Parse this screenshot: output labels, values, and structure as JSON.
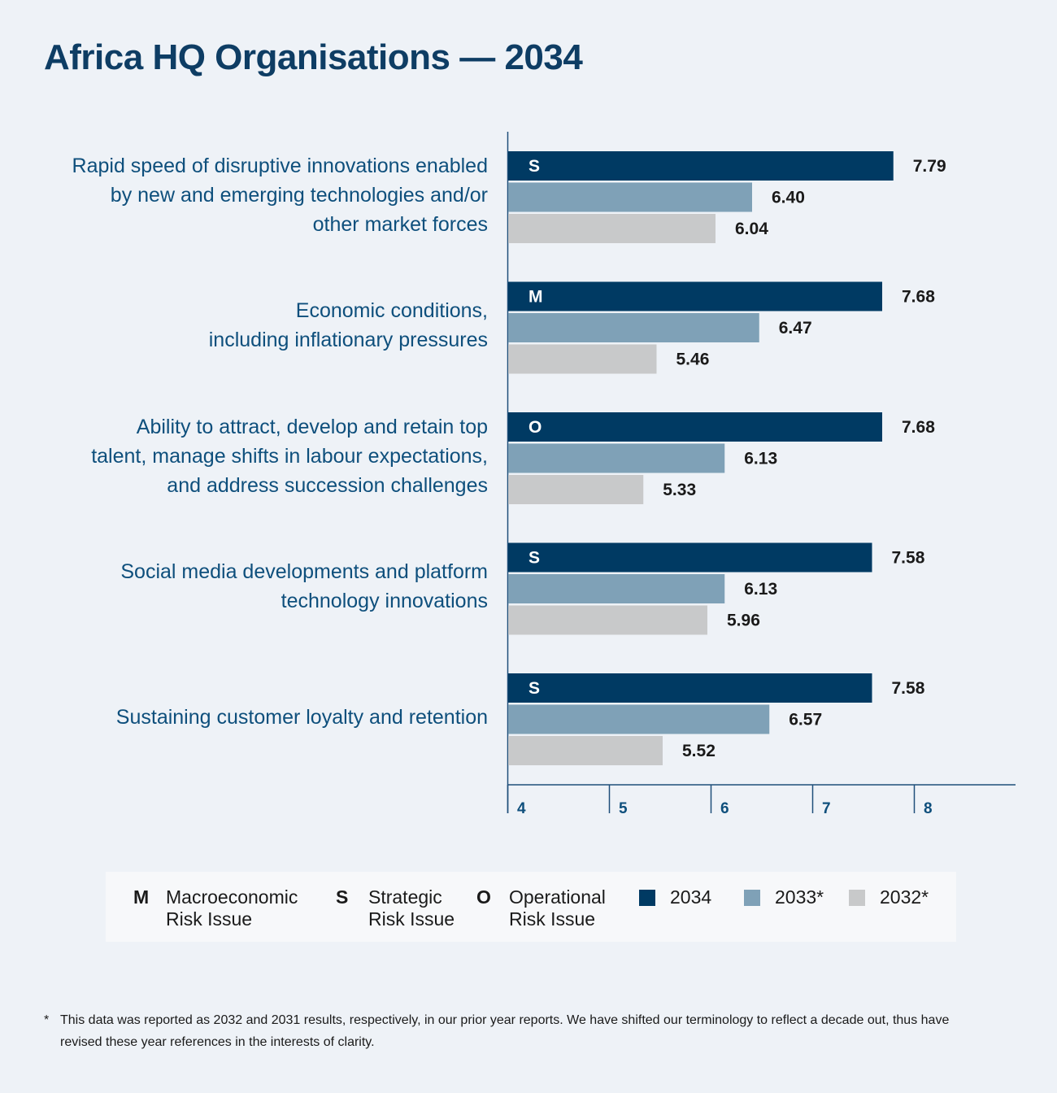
{
  "title": "Africa HQ Organisations — 2034",
  "chart_data": {
    "type": "bar",
    "orientation": "horizontal",
    "categories": [
      [
        "Rapid speed of disruptive innovations enabled",
        "by new and emerging technologies and/or",
        "other market forces"
      ],
      [
        "Economic conditions,",
        "including inflationary pressures"
      ],
      [
        "Ability to attract, develop and retain top",
        "talent, manage shifts in labour expectations,",
        "and address succession challenges"
      ],
      [
        "Social media developments and platform",
        "technology innovations"
      ],
      [
        "Sustaining customer loyalty and retention"
      ]
    ],
    "risk_codes": [
      "S",
      "M",
      "O",
      "S",
      "S"
    ],
    "series": [
      {
        "name": "2034",
        "color": "#003a63",
        "values": [
          7.79,
          7.68,
          7.68,
          7.58,
          7.58
        ]
      },
      {
        "name": "2033*",
        "color": "#7fa1b7",
        "values": [
          6.4,
          6.47,
          6.13,
          6.13,
          6.57
        ]
      },
      {
        "name": "2032*",
        "color": "#c8c9ca",
        "values": [
          6.04,
          5.46,
          5.33,
          5.96,
          5.52
        ]
      }
    ],
    "xlim": [
      4,
      9
    ],
    "xticks": [
      "4",
      "5",
      "6",
      "7",
      "8"
    ],
    "value_labels": [
      [
        "7.79",
        "6.40",
        "6.04"
      ],
      [
        "7.68",
        "6.47",
        "5.46"
      ],
      [
        "7.68",
        "6.13",
        "5.33"
      ],
      [
        "7.58",
        "6.13",
        "5.96"
      ],
      [
        "7.58",
        "6.57",
        "5.52"
      ]
    ]
  },
  "legend": {
    "risk_types": [
      {
        "key": "M",
        "line1": "Macroeconomic",
        "line2": "Risk Issue"
      },
      {
        "key": "S",
        "line1": "Strategic",
        "line2": "Risk Issue"
      },
      {
        "key": "O",
        "line1": "Operational",
        "line2": "Risk Issue"
      }
    ],
    "years": [
      {
        "label": "2034",
        "color": "#003a63"
      },
      {
        "label": "2033*",
        "color": "#7fa1b7"
      },
      {
        "label": "2032*",
        "color": "#c8c9ca"
      }
    ]
  },
  "footnote": {
    "marker": "*",
    "text": "This data was reported as 2032 and 2031 results, respectively, in our prior year reports. We have shifted our terminology to reflect a decade out, thus have revised these year references in the interests of clarity."
  }
}
